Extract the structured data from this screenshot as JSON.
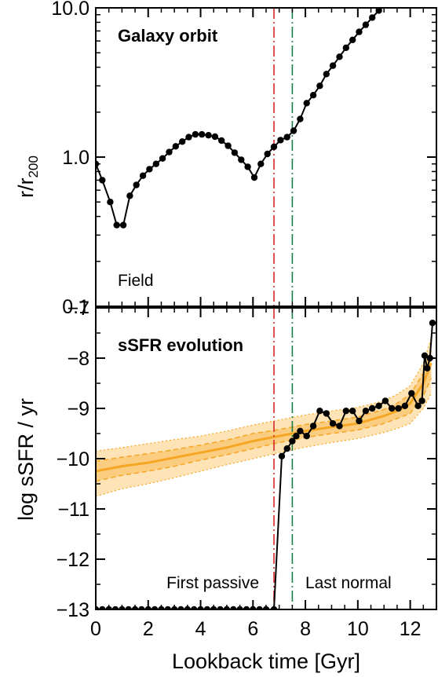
{
  "chart_data": [
    {
      "type": "line",
      "title": "Galaxy orbit",
      "ylabel": "r/r",
      "ylabel_sub": "200",
      "yscale": "log",
      "xlim": [
        0,
        13
      ],
      "ylim": [
        0.1,
        10.0
      ],
      "y_ticks": [
        0.1,
        1.0,
        10.0
      ],
      "y_tick_labels": [
        "0.1",
        "1.0",
        "10.0"
      ],
      "series": [
        {
          "color": "#000000",
          "x": [
            0.0,
            0.25,
            0.55,
            0.8,
            1.05,
            1.3,
            1.55,
            1.8,
            2.05,
            2.3,
            2.55,
            2.8,
            3.05,
            3.3,
            3.55,
            3.8,
            4.05,
            4.3,
            4.55,
            4.8,
            5.05,
            5.3,
            5.55,
            5.8,
            6.05,
            6.3,
            6.55,
            6.8,
            7.05,
            7.3,
            7.55,
            7.8,
            8.05,
            8.3,
            8.55,
            8.8,
            9.05,
            9.3,
            9.55,
            9.8,
            10.05,
            10.3,
            10.55,
            10.8,
            11.05
          ],
          "y": [
            0.9,
            0.7,
            0.5,
            0.35,
            0.35,
            0.55,
            0.65,
            0.75,
            0.83,
            0.9,
            0.98,
            1.08,
            1.18,
            1.27,
            1.36,
            1.42,
            1.42,
            1.4,
            1.37,
            1.29,
            1.19,
            1.07,
            0.96,
            0.86,
            0.73,
            0.9,
            1.05,
            1.17,
            1.3,
            1.36,
            1.5,
            1.8,
            2.3,
            2.6,
            3.0,
            3.6,
            4.1,
            4.7,
            5.4,
            6.1,
            6.9,
            7.7,
            8.6,
            9.6,
            10.5
          ]
        }
      ]
    },
    {
      "type": "line",
      "title": "sSFR evolution",
      "xlabel": "Lookback time [Gyr]",
      "ylabel": "log sSFR / yr",
      "xlim": [
        0,
        13
      ],
      "ylim": [
        -13,
        -7
      ],
      "x_ticks": [
        0,
        2,
        4,
        6,
        8,
        10,
        12
      ],
      "y_ticks": [
        -13,
        -12,
        -11,
        -10,
        -9,
        -8,
        -7
      ],
      "field_band": {
        "label": "Field",
        "color": "#f5a623",
        "x": [
          0,
          1,
          2,
          3,
          4,
          5,
          6,
          7,
          8,
          9,
          10,
          11,
          11.5,
          12,
          12.5,
          12.8
        ],
        "median": [
          -10.25,
          -10.15,
          -10.08,
          -9.98,
          -9.88,
          -9.78,
          -9.65,
          -9.55,
          -9.45,
          -9.37,
          -9.3,
          -9.15,
          -9.05,
          -8.9,
          -8.5,
          -8.1
        ],
        "inner_low": [
          -10.45,
          -10.33,
          -10.25,
          -10.15,
          -10.03,
          -9.92,
          -9.8,
          -9.68,
          -9.58,
          -9.5,
          -9.43,
          -9.3,
          -9.2,
          -9.1,
          -8.75,
          -8.4
        ],
        "inner_high": [
          -10.05,
          -9.97,
          -9.9,
          -9.82,
          -9.73,
          -9.63,
          -9.5,
          -9.42,
          -9.32,
          -9.25,
          -9.17,
          -9.02,
          -8.9,
          -8.72,
          -8.3,
          -7.85
        ],
        "outer_low": [
          -10.75,
          -10.6,
          -10.5,
          -10.38,
          -10.25,
          -10.12,
          -10.0,
          -9.88,
          -9.77,
          -9.68,
          -9.6,
          -9.48,
          -9.4,
          -9.3,
          -9.0,
          -8.7
        ],
        "outer_high": [
          -9.85,
          -9.78,
          -9.7,
          -9.62,
          -9.55,
          -9.45,
          -9.33,
          -9.23,
          -9.13,
          -9.05,
          -8.98,
          -8.85,
          -8.72,
          -8.55,
          -8.1,
          -7.6
        ]
      },
      "series": [
        {
          "color": "#000000",
          "x": [
            0.0,
            0.25,
            0.5,
            0.75,
            1.0,
            1.25,
            1.5,
            1.75,
            2.0,
            2.25,
            2.5,
            2.75,
            3.0,
            3.25,
            3.5,
            3.75,
            4.0,
            4.25,
            4.5,
            4.75,
            5.0,
            5.25,
            5.5,
            5.75,
            6.0,
            6.25,
            6.5,
            6.8,
            7.1,
            7.3,
            7.5,
            7.65,
            7.8,
            8.05,
            8.3,
            8.55,
            8.8,
            9.05,
            9.3,
            9.55,
            9.8,
            10.05,
            10.3,
            10.55,
            10.8,
            11.05,
            11.3,
            11.55,
            11.8,
            12.05,
            12.3,
            12.45,
            12.55,
            12.65,
            12.75,
            12.85
          ],
          "y": [
            -13,
            -13,
            -13,
            -13,
            -13,
            -13,
            -13,
            -13,
            -13,
            -13,
            -13,
            -13,
            -13,
            -13,
            -13,
            -13,
            -13,
            -13,
            -13,
            -13,
            -13,
            -13,
            -13,
            -13,
            -13,
            -13,
            -13,
            -13,
            -9.95,
            -9.8,
            -9.65,
            -9.55,
            -9.45,
            -9.55,
            -9.35,
            -9.05,
            -9.1,
            -9.3,
            -9.35,
            -9.05,
            -9.05,
            -9.25,
            -9.05,
            -9.0,
            -8.95,
            -8.85,
            -9.0,
            -9.0,
            -8.95,
            -8.7,
            -8.95,
            -8.85,
            -7.95,
            -8.2,
            -8.0,
            -7.3
          ]
        }
      ]
    }
  ],
  "markers": {
    "first_passive": {
      "x": 6.8,
      "label": "First passive",
      "color": "#d62728"
    },
    "last_normal": {
      "x": 7.5,
      "label": "Last normal",
      "color": "#1a7a4a"
    }
  }
}
